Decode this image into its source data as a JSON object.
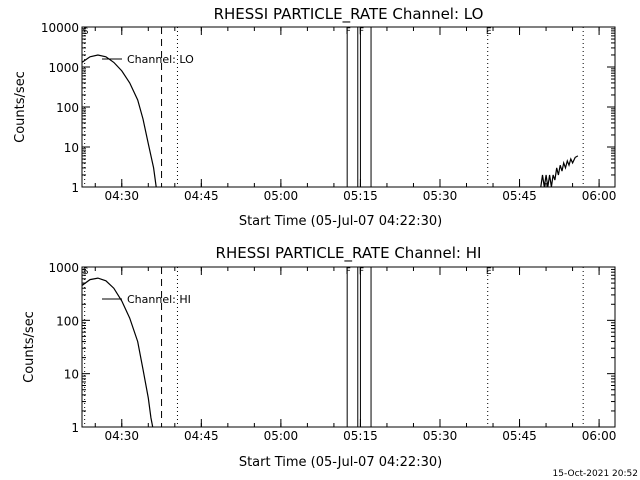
{
  "footer_timestamp": "15-Oct-2021 20:52",
  "chart_data": [
    {
      "type": "line",
      "title": "RHESSI PARTICLE_RATE Channel: LO",
      "xlabel": "Start Time (05-Jul-07 04:22:30)",
      "ylabel": "Counts/sec",
      "yscale": "log",
      "ylim": [
        1,
        10000
      ],
      "xlim": [
        "04:22:30",
        "06:03:00"
      ],
      "x_ticks": [
        "04:30",
        "04:45",
        "05:00",
        "05:15",
        "05:30",
        "05:45",
        "06:00"
      ],
      "y_ticks": [
        "1",
        "10",
        "100",
        "1000",
        "10000"
      ],
      "legend": {
        "label": "Channel: LO",
        "position": "top-left"
      },
      "markers": [
        {
          "label": "S",
          "time": "04:23:00",
          "style": "dotted"
        },
        {
          "label": "",
          "time": "04:37:30",
          "style": "dashed"
        },
        {
          "label": "",
          "time": "04:40:30",
          "style": "dotted"
        },
        {
          "label": "F",
          "time": "05:12:30",
          "style": "solid"
        },
        {
          "label": "",
          "time": "05:14:30",
          "style": "solid"
        },
        {
          "label": "F",
          "time": "05:15:00",
          "style": "solid"
        },
        {
          "label": "",
          "time": "05:17:00",
          "style": "solid"
        },
        {
          "label": "E",
          "time": "05:39:00",
          "style": "dotted"
        },
        {
          "label": "",
          "time": "05:57:00",
          "style": "dotted"
        }
      ],
      "series": [
        {
          "name": "Channel: LO",
          "points": [
            [
              "04:22:30",
              1300
            ],
            [
              "04:24:00",
              1800
            ],
            [
              "04:25:30",
              2000
            ],
            [
              "04:27:00",
              1800
            ],
            [
              "04:28:30",
              1300
            ],
            [
              "04:30:00",
              800
            ],
            [
              "04:31:30",
              400
            ],
            [
              "04:33:00",
              150
            ],
            [
              "04:34:00",
              50
            ],
            [
              "04:35:00",
              12
            ],
            [
              "04:36:00",
              3
            ],
            [
              "04:36:30",
              1
            ]
          ],
          "points2": [
            [
              "05:49:00",
              1
            ],
            [
              "05:49:20",
              2
            ],
            [
              "05:49:40",
              1
            ],
            [
              "05:50:00",
              2
            ],
            [
              "05:50:20",
              1
            ],
            [
              "05:50:40",
              2
            ],
            [
              "05:51:00",
              1
            ],
            [
              "05:51:20",
              2
            ],
            [
              "05:51:40",
              1.5
            ],
            [
              "05:52:00",
              3
            ],
            [
              "05:52:20",
              2
            ],
            [
              "05:52:40",
              3.5
            ],
            [
              "05:53:00",
              2.5
            ],
            [
              "05:53:20",
              4
            ],
            [
              "05:53:40",
              3
            ],
            [
              "05:54:00",
              4.5
            ],
            [
              "05:54:20",
              3.5
            ],
            [
              "05:54:40",
              5
            ],
            [
              "05:55:00",
              4
            ],
            [
              "05:55:30",
              5.5
            ],
            [
              "05:56:00",
              6
            ]
          ]
        }
      ]
    },
    {
      "type": "line",
      "title": "RHESSI PARTICLE_RATE Channel: HI",
      "xlabel": "Start Time (05-Jul-07 04:22:30)",
      "ylabel": "Counts/sec",
      "yscale": "log",
      "ylim": [
        1,
        1000
      ],
      "xlim": [
        "04:22:30",
        "06:03:00"
      ],
      "x_ticks": [
        "04:30",
        "04:45",
        "05:00",
        "05:15",
        "05:30",
        "05:45",
        "06:00"
      ],
      "y_ticks": [
        "1",
        "10",
        "100",
        "1000"
      ],
      "legend": {
        "label": "Channel: HI",
        "position": "top-left"
      },
      "markers": [
        {
          "label": "S",
          "time": "04:23:00",
          "style": "dotted"
        },
        {
          "label": "",
          "time": "04:37:30",
          "style": "dashed"
        },
        {
          "label": "",
          "time": "04:40:30",
          "style": "dotted"
        },
        {
          "label": "F",
          "time": "05:12:30",
          "style": "solid"
        },
        {
          "label": "",
          "time": "05:14:30",
          "style": "solid"
        },
        {
          "label": "F",
          "time": "05:15:00",
          "style": "solid"
        },
        {
          "label": "",
          "time": "05:17:00",
          "style": "solid"
        },
        {
          "label": "E",
          "time": "05:39:00",
          "style": "dotted"
        },
        {
          "label": "",
          "time": "05:57:00",
          "style": "dotted"
        }
      ],
      "series": [
        {
          "name": "Channel: HI",
          "points": [
            [
              "04:22:30",
              450
            ],
            [
              "04:24:00",
              580
            ],
            [
              "04:25:30",
              620
            ],
            [
              "04:27:00",
              550
            ],
            [
              "04:28:30",
              400
            ],
            [
              "04:30:00",
              230
            ],
            [
              "04:31:30",
              110
            ],
            [
              "04:33:00",
              40
            ],
            [
              "04:34:00",
              12
            ],
            [
              "04:35:00",
              3.5
            ],
            [
              "04:35:30",
              1.5
            ],
            [
              "04:35:50",
              1
            ]
          ],
          "points2": []
        }
      ]
    }
  ]
}
